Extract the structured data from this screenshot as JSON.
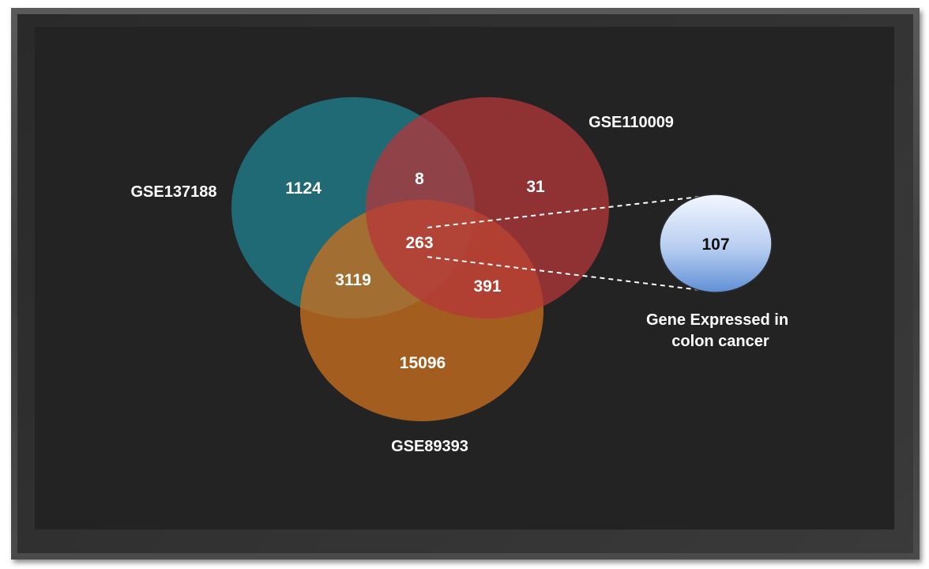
{
  "sets": [
    {
      "name": "GSE137188",
      "color": "#1f7f8c"
    },
    {
      "name": "GSE110009",
      "color": "#b6373a"
    },
    {
      "name": "GSE89393",
      "color": "#c8701f"
    }
  ],
  "regions": {
    "only_a": "1124",
    "a_b": "8",
    "only_b": "31",
    "a_b_c": "263",
    "a_c": "3119",
    "b_c": "391",
    "only_c": "15096"
  },
  "callout": {
    "value": "107",
    "caption_line1": "Gene Expressed in",
    "caption_line2": "colon cancer"
  }
}
